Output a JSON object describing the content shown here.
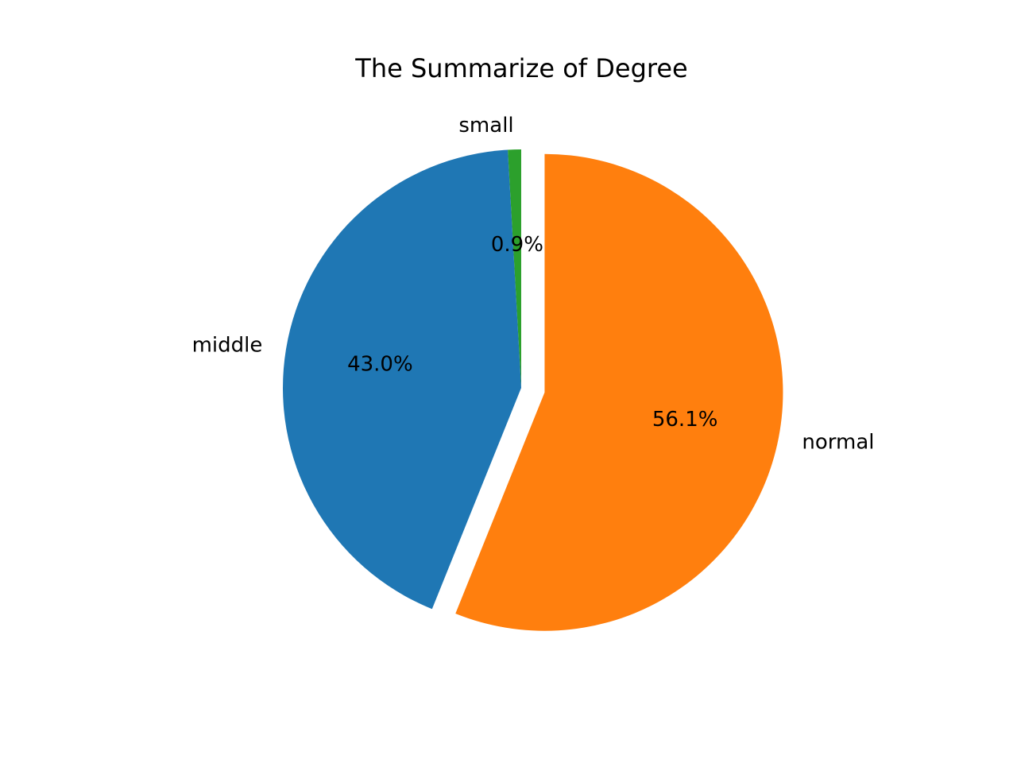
{
  "chart_data": {
    "type": "pie",
    "title": "The Summarize of Degree",
    "start_angle_deg": 90,
    "direction": "counterclockwise",
    "slices": [
      {
        "label": "small",
        "percent": 0.9,
        "pct_text": "0.9%",
        "color": "#2ca02c",
        "explode": 0.0
      },
      {
        "label": "middle",
        "percent": 43.0,
        "pct_text": "43.0%",
        "color": "#1f77b4",
        "explode": 0.0
      },
      {
        "label": "normal",
        "percent": 56.1,
        "pct_text": "56.1%",
        "color": "#ff7f0e",
        "explode": 0.1
      }
    ]
  }
}
